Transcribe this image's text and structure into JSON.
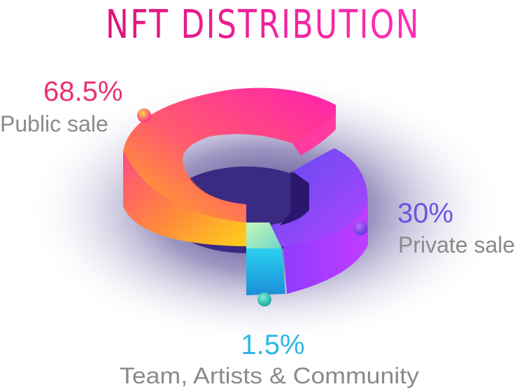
{
  "title": "NFT DISTRIBUTION",
  "chart_data": {
    "type": "pie",
    "variant": "3d-donut",
    "title": "NFT DISTRIBUTION",
    "slices": [
      {
        "label": "Public sale",
        "value": 68.5,
        "value_label": "68.5%",
        "color": "#ff2d8a"
      },
      {
        "label": "Private sale",
        "value": 30,
        "value_label": "30%",
        "color": "#7a4dff"
      },
      {
        "label": "Team, Artists & Community",
        "value": 1.5,
        "value_label": "1.5%",
        "color": "#1ec6e8"
      }
    ],
    "legend": "none"
  }
}
